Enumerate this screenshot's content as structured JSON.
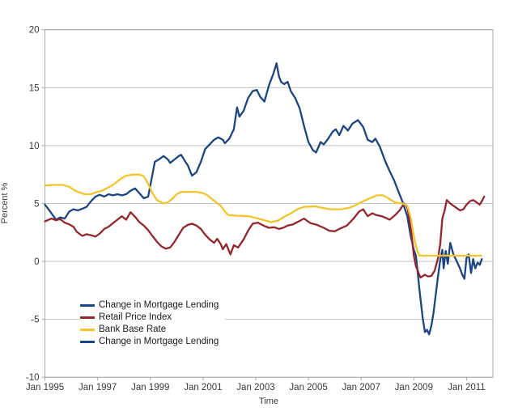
{
  "chart_data": {
    "type": "line",
    "title": "",
    "xlabel": "Time",
    "ylabel": "Percent %",
    "x_tick_labels": [
      "Jan 1995",
      "Jan 1997",
      "Jan 1999",
      "Jan 2001",
      "Jan 2003",
      "Jan 2005",
      "Jan 2007",
      "Jan 2009",
      "Jan 2011"
    ],
    "x_tick_years": [
      1995,
      1997,
      1999,
      2001,
      2003,
      2005,
      2007,
      2009,
      2011
    ],
    "y_ticks": [
      20,
      15,
      10,
      5,
      0,
      -5,
      -10
    ],
    "x_range_years": [
      1995,
      2012
    ],
    "y_range": [
      -10,
      20
    ],
    "grid": "horizontal",
    "legend_position": "inside-lower-left",
    "legend": [
      {
        "label": "Change in Mortgage Lending",
        "color": "#1b4584"
      },
      {
        "label": "Retail Price Index",
        "color": "#96262c"
      },
      {
        "label": "Bank Base Rate",
        "color": "#f4c42a"
      },
      {
        "label": "Change in Mortgage Lending",
        "color": "#1b4584"
      }
    ],
    "series": [
      {
        "name": "Change in Mortgage Lending",
        "color": "#1b4584",
        "points": [
          [
            1995.0,
            4.9
          ],
          [
            1995.17,
            4.4
          ],
          [
            1995.42,
            3.6
          ],
          [
            1995.58,
            3.8
          ],
          [
            1995.75,
            3.7
          ],
          [
            1995.92,
            4.3
          ],
          [
            1996.08,
            4.5
          ],
          [
            1996.25,
            4.4
          ],
          [
            1996.42,
            4.55
          ],
          [
            1996.58,
            4.7
          ],
          [
            1996.75,
            5.2
          ],
          [
            1996.92,
            5.6
          ],
          [
            1997.08,
            5.75
          ],
          [
            1997.25,
            5.6
          ],
          [
            1997.42,
            5.8
          ],
          [
            1997.58,
            5.7
          ],
          [
            1997.75,
            5.8
          ],
          [
            1997.92,
            5.7
          ],
          [
            1998.08,
            5.8
          ],
          [
            1998.25,
            6.1
          ],
          [
            1998.42,
            6.3
          ],
          [
            1998.58,
            5.9
          ],
          [
            1998.75,
            5.45
          ],
          [
            1998.92,
            5.6
          ],
          [
            1999.08,
            7.5
          ],
          [
            1999.17,
            8.6
          ],
          [
            1999.33,
            8.8
          ],
          [
            1999.5,
            9.1
          ],
          [
            1999.67,
            8.8
          ],
          [
            1999.75,
            8.5
          ],
          [
            1999.92,
            8.8
          ],
          [
            2000.08,
            9.1
          ],
          [
            2000.17,
            9.2
          ],
          [
            2000.33,
            8.6
          ],
          [
            2000.42,
            8.3
          ],
          [
            2000.58,
            7.4
          ],
          [
            2000.75,
            7.7
          ],
          [
            2000.92,
            8.6
          ],
          [
            2001.08,
            9.7
          ],
          [
            2001.25,
            10.1
          ],
          [
            2001.42,
            10.5
          ],
          [
            2001.58,
            10.7
          ],
          [
            2001.75,
            10.5
          ],
          [
            2001.83,
            10.2
          ],
          [
            2002.0,
            10.6
          ],
          [
            2002.17,
            11.4
          ],
          [
            2002.29,
            13.3
          ],
          [
            2002.38,
            12.5
          ],
          [
            2002.54,
            13.0
          ],
          [
            2002.71,
            14.1
          ],
          [
            2002.88,
            14.7
          ],
          [
            2003.04,
            14.8
          ],
          [
            2003.17,
            14.2
          ],
          [
            2003.33,
            13.8
          ],
          [
            2003.5,
            15.2
          ],
          [
            2003.67,
            16.2
          ],
          [
            2003.79,
            17.1
          ],
          [
            2003.88,
            16.0
          ],
          [
            2003.96,
            15.5
          ],
          [
            2004.08,
            15.3
          ],
          [
            2004.21,
            15.5
          ],
          [
            2004.33,
            14.7
          ],
          [
            2004.5,
            14.1
          ],
          [
            2004.67,
            13.2
          ],
          [
            2004.83,
            11.7
          ],
          [
            2005.0,
            10.3
          ],
          [
            2005.17,
            9.6
          ],
          [
            2005.29,
            9.4
          ],
          [
            2005.46,
            10.3
          ],
          [
            2005.58,
            10.1
          ],
          [
            2005.75,
            10.6
          ],
          [
            2005.92,
            11.2
          ],
          [
            2006.04,
            11.4
          ],
          [
            2006.17,
            10.9
          ],
          [
            2006.33,
            11.7
          ],
          [
            2006.5,
            11.3
          ],
          [
            2006.67,
            11.9
          ],
          [
            2006.88,
            12.2
          ],
          [
            2007.08,
            11.6
          ],
          [
            2007.25,
            10.5
          ],
          [
            2007.42,
            10.3
          ],
          [
            2007.54,
            10.6
          ],
          [
            2007.71,
            9.9
          ],
          [
            2007.92,
            8.6
          ],
          [
            2008.08,
            7.8
          ],
          [
            2008.25,
            7.0
          ],
          [
            2008.42,
            6.0
          ],
          [
            2008.58,
            5.1
          ],
          [
            2008.75,
            3.9
          ],
          [
            2008.88,
            2.2
          ],
          [
            2009.0,
            1.0
          ],
          [
            2009.08,
            0.5
          ],
          [
            2009.21,
            -2.4
          ],
          [
            2009.33,
            -4.8
          ],
          [
            2009.42,
            -6.1
          ],
          [
            2009.5,
            -5.9
          ],
          [
            2009.58,
            -6.3
          ],
          [
            2009.67,
            -5.5
          ],
          [
            2009.75,
            -4.4
          ],
          [
            2009.83,
            -2.9
          ],
          [
            2009.92,
            -1.2
          ],
          [
            2010.0,
            0.1
          ],
          [
            2010.08,
            1.0
          ],
          [
            2010.13,
            -0.6
          ],
          [
            2010.21,
            0.9
          ],
          [
            2010.29,
            -0.2
          ],
          [
            2010.38,
            1.6
          ],
          [
            2010.5,
            0.6
          ],
          [
            2010.63,
            0.0
          ],
          [
            2010.75,
            -0.6
          ],
          [
            2010.83,
            -1.1
          ],
          [
            2010.92,
            -1.5
          ],
          [
            2011.0,
            0.3
          ],
          [
            2011.08,
            0.6
          ],
          [
            2011.17,
            -1.0
          ],
          [
            2011.25,
            0.2
          ],
          [
            2011.33,
            -0.6
          ],
          [
            2011.42,
            -0.1
          ],
          [
            2011.5,
            -0.3
          ],
          [
            2011.58,
            0.2
          ]
        ]
      },
      {
        "name": "Retail Price Index",
        "color": "#96262c",
        "points": [
          [
            1995.0,
            3.45
          ],
          [
            1995.25,
            3.7
          ],
          [
            1995.42,
            3.55
          ],
          [
            1995.58,
            3.65
          ],
          [
            1995.75,
            3.35
          ],
          [
            1995.92,
            3.2
          ],
          [
            1996.08,
            3.0
          ],
          [
            1996.21,
            2.55
          ],
          [
            1996.42,
            2.2
          ],
          [
            1996.58,
            2.35
          ],
          [
            1996.75,
            2.25
          ],
          [
            1996.92,
            2.15
          ],
          [
            1997.08,
            2.4
          ],
          [
            1997.25,
            2.8
          ],
          [
            1997.42,
            3.0
          ],
          [
            1997.58,
            3.3
          ],
          [
            1997.75,
            3.6
          ],
          [
            1997.92,
            3.9
          ],
          [
            1998.08,
            3.6
          ],
          [
            1998.25,
            4.25
          ],
          [
            1998.42,
            3.85
          ],
          [
            1998.58,
            3.4
          ],
          [
            1998.75,
            3.1
          ],
          [
            1998.92,
            2.7
          ],
          [
            1999.08,
            2.2
          ],
          [
            1999.25,
            1.7
          ],
          [
            1999.42,
            1.3
          ],
          [
            1999.58,
            1.1
          ],
          [
            1999.75,
            1.2
          ],
          [
            1999.92,
            1.7
          ],
          [
            2000.08,
            2.3
          ],
          [
            2000.25,
            2.9
          ],
          [
            2000.42,
            3.15
          ],
          [
            2000.58,
            3.25
          ],
          [
            2000.75,
            3.1
          ],
          [
            2000.92,
            2.8
          ],
          [
            2001.08,
            2.3
          ],
          [
            2001.25,
            1.9
          ],
          [
            2001.42,
            1.6
          ],
          [
            2001.54,
            1.95
          ],
          [
            2001.67,
            1.5
          ],
          [
            2001.75,
            1.05
          ],
          [
            2001.88,
            1.5
          ],
          [
            2002.04,
            0.6
          ],
          [
            2002.17,
            1.4
          ],
          [
            2002.33,
            1.2
          ],
          [
            2002.54,
            1.9
          ],
          [
            2002.71,
            2.65
          ],
          [
            2002.88,
            3.25
          ],
          [
            2003.08,
            3.35
          ],
          [
            2003.29,
            3.1
          ],
          [
            2003.5,
            2.9
          ],
          [
            2003.71,
            2.95
          ],
          [
            2003.88,
            2.8
          ],
          [
            2004.04,
            2.9
          ],
          [
            2004.21,
            3.1
          ],
          [
            2004.42,
            3.2
          ],
          [
            2004.63,
            3.45
          ],
          [
            2004.83,
            3.7
          ],
          [
            2005.08,
            3.3
          ],
          [
            2005.33,
            3.15
          ],
          [
            2005.58,
            2.9
          ],
          [
            2005.79,
            2.65
          ],
          [
            2006.0,
            2.6
          ],
          [
            2006.17,
            2.8
          ],
          [
            2006.46,
            3.1
          ],
          [
            2006.71,
            3.7
          ],
          [
            2006.92,
            4.3
          ],
          [
            2007.08,
            4.5
          ],
          [
            2007.25,
            3.9
          ],
          [
            2007.42,
            4.15
          ],
          [
            2007.58,
            4.0
          ],
          [
            2007.79,
            3.9
          ],
          [
            2008.08,
            3.6
          ],
          [
            2008.29,
            4.0
          ],
          [
            2008.46,
            4.4
          ],
          [
            2008.63,
            5.0
          ],
          [
            2008.75,
            4.7
          ],
          [
            2008.88,
            3.0
          ],
          [
            2009.0,
            0.5
          ],
          [
            2009.08,
            -0.4
          ],
          [
            2009.25,
            -1.4
          ],
          [
            2009.42,
            -1.15
          ],
          [
            2009.54,
            -1.3
          ],
          [
            2009.67,
            -1.25
          ],
          [
            2009.79,
            -0.8
          ],
          [
            2009.92,
            0.3
          ],
          [
            2010.0,
            1.5
          ],
          [
            2010.08,
            3.7
          ],
          [
            2010.17,
            4.4
          ],
          [
            2010.25,
            5.3
          ],
          [
            2010.38,
            5.0
          ],
          [
            2010.5,
            4.8
          ],
          [
            2010.63,
            4.6
          ],
          [
            2010.75,
            4.4
          ],
          [
            2010.88,
            4.5
          ],
          [
            2011.0,
            4.9
          ],
          [
            2011.13,
            5.2
          ],
          [
            2011.25,
            5.3
          ],
          [
            2011.38,
            5.1
          ],
          [
            2011.5,
            4.9
          ],
          [
            2011.58,
            5.2
          ],
          [
            2011.67,
            5.6
          ]
        ]
      },
      {
        "name": "Bank Base Rate",
        "color": "#f4c42a",
        "points": [
          [
            1995.0,
            6.55
          ],
          [
            1995.33,
            6.6
          ],
          [
            1995.67,
            6.6
          ],
          [
            1995.92,
            6.45
          ],
          [
            1996.08,
            6.2
          ],
          [
            1996.25,
            6.0
          ],
          [
            1996.5,
            5.8
          ],
          [
            1996.75,
            5.8
          ],
          [
            1996.92,
            5.95
          ],
          [
            1997.17,
            6.1
          ],
          [
            1997.42,
            6.4
          ],
          [
            1997.58,
            6.6
          ],
          [
            1997.75,
            6.9
          ],
          [
            1997.92,
            7.2
          ],
          [
            1998.08,
            7.4
          ],
          [
            1998.33,
            7.5
          ],
          [
            1998.58,
            7.5
          ],
          [
            1998.75,
            7.35
          ],
          [
            1998.92,
            6.7
          ],
          [
            1999.08,
            5.9
          ],
          [
            1999.25,
            5.3
          ],
          [
            1999.5,
            5.0
          ],
          [
            1999.67,
            5.1
          ],
          [
            1999.83,
            5.4
          ],
          [
            2000.0,
            5.8
          ],
          [
            2000.17,
            6.0
          ],
          [
            2000.75,
            6.0
          ],
          [
            2001.0,
            5.9
          ],
          [
            2001.17,
            5.7
          ],
          [
            2001.33,
            5.4
          ],
          [
            2001.5,
            5.1
          ],
          [
            2001.67,
            4.8
          ],
          [
            2001.83,
            4.3
          ],
          [
            2001.96,
            4.0
          ],
          [
            2002.25,
            3.95
          ],
          [
            2002.75,
            3.9
          ],
          [
            2003.08,
            3.7
          ],
          [
            2003.33,
            3.55
          ],
          [
            2003.58,
            3.4
          ],
          [
            2003.83,
            3.5
          ],
          [
            2004.08,
            3.85
          ],
          [
            2004.33,
            4.15
          ],
          [
            2004.58,
            4.5
          ],
          [
            2004.83,
            4.7
          ],
          [
            2005.25,
            4.75
          ],
          [
            2005.58,
            4.6
          ],
          [
            2005.83,
            4.5
          ],
          [
            2006.25,
            4.5
          ],
          [
            2006.58,
            4.65
          ],
          [
            2006.83,
            4.9
          ],
          [
            2007.08,
            5.2
          ],
          [
            2007.33,
            5.45
          ],
          [
            2007.58,
            5.7
          ],
          [
            2007.83,
            5.7
          ],
          [
            2007.96,
            5.55
          ],
          [
            2008.17,
            5.25
          ],
          [
            2008.33,
            5.05
          ],
          [
            2008.58,
            5.0
          ],
          [
            2008.75,
            4.8
          ],
          [
            2008.88,
            3.8
          ],
          [
            2008.96,
            2.7
          ],
          [
            2009.04,
            1.7
          ],
          [
            2009.13,
            0.9
          ],
          [
            2009.21,
            0.5
          ],
          [
            2011.56,
            0.5
          ]
        ]
      }
    ]
  },
  "colors": {
    "background": "#ffffff",
    "plot_border": "#a8a8a8",
    "gridline": "#c2c2c2",
    "tick_text": "#3a3a3a",
    "axis_title_text": "#3a3a3a",
    "legend_text": "#1a1a1a"
  }
}
